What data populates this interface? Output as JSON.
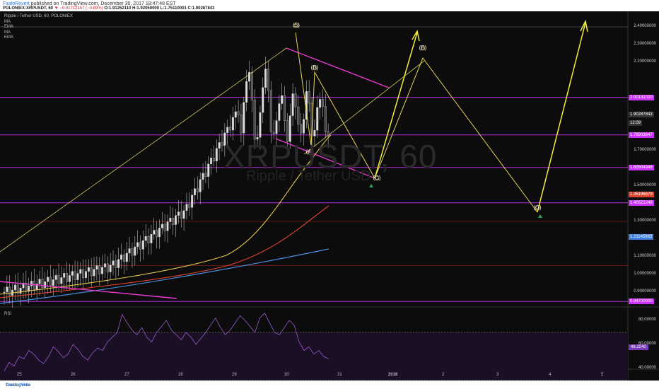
{
  "header": {
    "user": "FxaloRevert",
    "published": "published on TradingView.com, December 30, 2017 18:47:48 EST",
    "symbol_line": "POLONIEX:XRPUSDT, 60",
    "change": "▼ −0.01712157 (−0.89%)",
    "ohlc": "O:1.91252110 H:1.92050000 L:1.75110001 C:1.90287843"
  },
  "legend": {
    "title": "Ripple / Tether USD, 60, POLONIEX",
    "items": [
      "MA",
      "EMA",
      "MA",
      "EMA"
    ]
  },
  "watermark": {
    "symbol": "XRPUSDT, 60",
    "name": "Ripple / Tether USD"
  },
  "chart_data": {
    "type": "line",
    "title": "Ripple / Tether USD, 60, POLONIEX",
    "x_ticks": [
      "25",
      "26",
      "27",
      "28",
      "29",
      "30",
      "31",
      "2018",
      "2",
      "3",
      "4",
      "5"
    ],
    "y_ticks": [
      "2.40000000",
      "2.30000000",
      "2.20000000",
      "1.70000000",
      "1.50000000",
      "1.30000000",
      "1.10000000",
      "1.00000000",
      "0.90000000"
    ],
    "ylim": [
      0.8,
      2.5
    ],
    "price_levels": [
      {
        "label": "2.00131020",
        "value": 2.0013102,
        "color": "#cc33ff"
      },
      {
        "label": "1.90287843",
        "value": 1.90287843,
        "color": "#333333"
      },
      {
        "label": "12:09",
        "value": 1.855,
        "color": "#333333"
      },
      {
        "label": "1.78903847",
        "value": 1.78903847,
        "color": "#cc33ff"
      },
      {
        "label": "1.60504948",
        "value": 1.60504948,
        "color": "#cc33ff"
      },
      {
        "label": "1.45196679",
        "value": 1.45196679,
        "color": "#e0442e"
      },
      {
        "label": "1.40521249",
        "value": 1.40521249,
        "color": "#cc33ff"
      },
      {
        "label": "1.21145983",
        "value": 1.21145983,
        "color": "#3d7fe0"
      },
      {
        "label": "0.84700000",
        "value": 0.847,
        "color": "#cc33ff"
      }
    ],
    "wave_labels": [
      "(5)",
      "(A)",
      "(B)",
      "(C)",
      "(B)",
      "(C)"
    ],
    "rsi": {
      "label": "RSI",
      "ticks": [
        "80.00000",
        "60.00000",
        "40.00000"
      ],
      "value_label": "48.2240",
      "values": [
        38,
        45,
        42,
        50,
        48,
        55,
        52,
        47,
        44,
        50,
        58,
        54,
        49,
        52,
        60,
        56,
        50,
        47,
        53,
        57,
        55,
        62,
        66,
        70,
        85,
        78,
        72,
        68,
        74,
        66,
        62,
        70,
        75,
        80,
        72,
        68,
        64,
        70,
        66,
        60,
        65,
        70,
        76,
        82,
        74,
        68,
        72,
        78,
        84,
        80,
        75,
        70,
        82,
        86,
        78,
        70,
        68,
        74,
        80,
        76,
        62,
        55,
        58,
        52,
        55,
        50,
        48
      ]
    }
  },
  "footer": {
    "created": "Created with",
    "brand": "TradingView"
  }
}
